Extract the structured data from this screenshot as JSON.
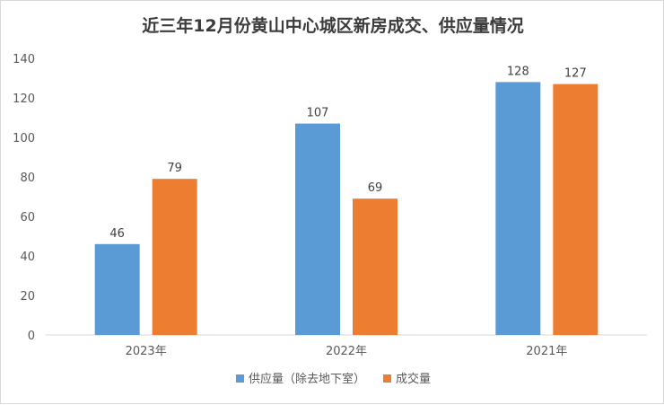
{
  "chart_data": {
    "type": "bar",
    "title": "近三年12月份黄山中心城区新房成交、供应量情况",
    "categories": [
      "2023年",
      "2022年",
      "2021年"
    ],
    "series": [
      {
        "name": "供应量（除去地下室）",
        "values": [
          46,
          107,
          128
        ],
        "color": "#5b9bd5"
      },
      {
        "name": "成交量",
        "values": [
          79,
          69,
          127
        ],
        "color": "#ed7d31"
      }
    ],
    "yticks": [
      0,
      20,
      40,
      60,
      80,
      100,
      120,
      140
    ],
    "ylim": [
      0,
      140
    ],
    "grid": false,
    "legend_position": "bottom",
    "data_labels": true
  }
}
